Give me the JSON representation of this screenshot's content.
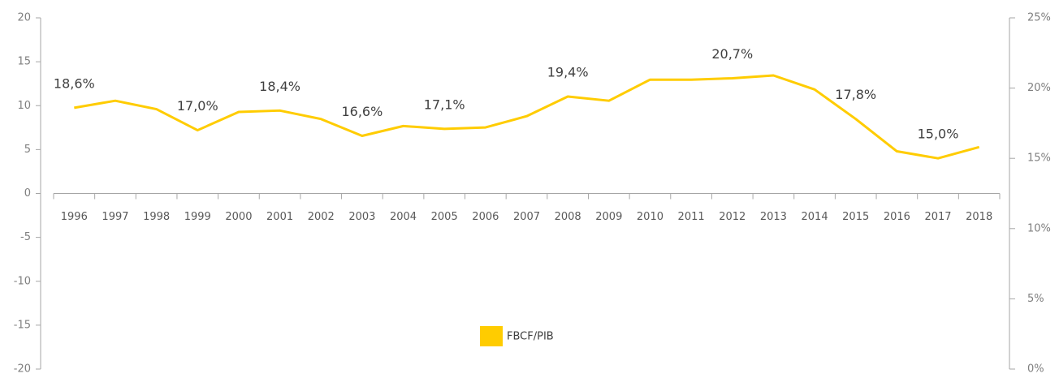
{
  "chart_data": {
    "type": "line",
    "categories": [
      "1996",
      "1997",
      "1998",
      "1999",
      "2000",
      "2001",
      "2002",
      "2003",
      "2004",
      "2005",
      "2006",
      "2007",
      "2008",
      "2009",
      "2010",
      "2011",
      "2012",
      "2013",
      "2014",
      "2015",
      "2016",
      "2017",
      "2018"
    ],
    "series": [
      {
        "name": "FBCF/PIB",
        "color": "#ffcc00",
        "axis": "y2",
        "values": [
          18.6,
          19.1,
          18.5,
          17.0,
          18.3,
          18.4,
          17.8,
          16.6,
          17.3,
          17.1,
          17.2,
          18.0,
          19.4,
          19.1,
          20.6,
          20.6,
          20.7,
          20.9,
          19.9,
          17.8,
          15.5,
          15.0,
          15.8
        ],
        "value_labels": [
          "18,6%",
          null,
          null,
          "17,0%",
          null,
          "18,4%",
          null,
          "16,6%",
          null,
          "17,1%",
          null,
          null,
          "19,4%",
          null,
          null,
          null,
          "20,7%",
          null,
          null,
          "17,8%",
          null,
          "15,0%",
          null
        ]
      }
    ],
    "ylim": [
      -20,
      20
    ],
    "yticks": [
      -20,
      -15,
      -10,
      -5,
      0,
      5,
      10,
      15,
      20
    ],
    "y2lim": [
      0,
      25
    ],
    "y2ticks": [
      {
        "value": 0,
        "label": "0%"
      },
      {
        "value": 5,
        "label": "5%"
      },
      {
        "value": 10,
        "label": "10%"
      },
      {
        "value": 15,
        "label": "15%"
      },
      {
        "value": 20,
        "label": "20%"
      },
      {
        "value": 25,
        "label": "25%"
      }
    ],
    "legend": "bottom"
  }
}
